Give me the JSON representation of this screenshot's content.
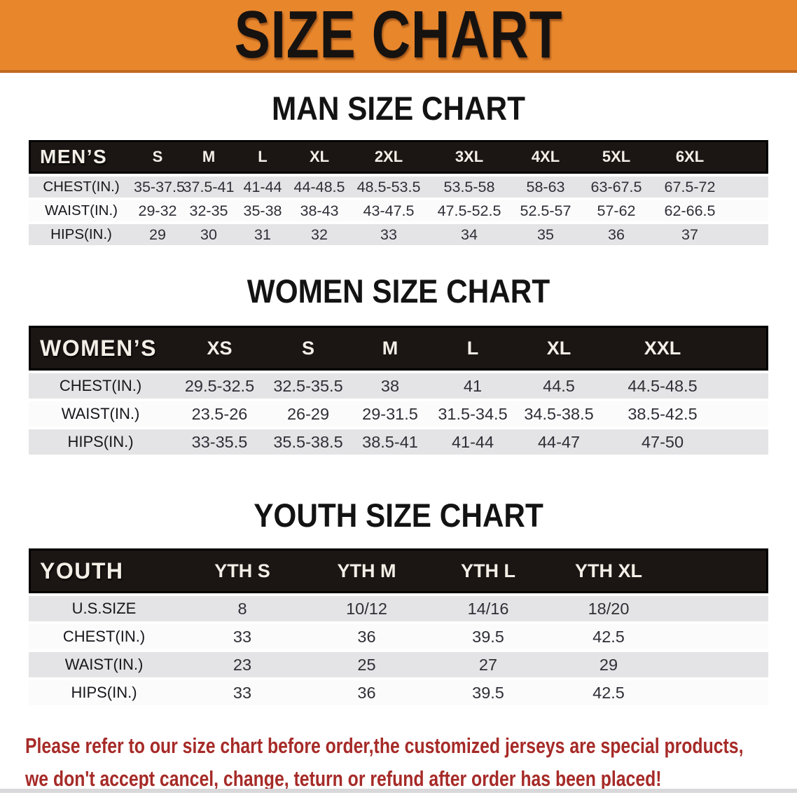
{
  "banner": {
    "title": "SIZE CHART",
    "bg_color": "#E8862C",
    "border_color": "#C06A1E",
    "text_color": "#161210"
  },
  "colors": {
    "header_row_bg": "#1B1614",
    "header_row_text": "#F3EFE7",
    "stripe_gray": "#E4E4E6",
    "stripe_white": "#FBFBFC",
    "footer_red": "#A62B28"
  },
  "sections": [
    {
      "heading": "MAN SIZE CHART",
      "corner": "MEN’S",
      "columns": [
        "S",
        "M",
        "L",
        "XL",
        "2XL",
        "3XL",
        "4XL",
        "5XL",
        "6XL"
      ],
      "rows": [
        {
          "label": "CHEST(IN.)",
          "values": [
            "35-37.5",
            "37.5-41",
            "41-44",
            "44-48.5",
            "48.5-53.5",
            "53.5-58",
            "58-63",
            "63-67.5",
            "67.5-72"
          ]
        },
        {
          "label": "WAIST(IN.)",
          "values": [
            "29-32",
            "32-35",
            "35-38",
            "38-43",
            "43-47.5",
            "47.5-52.5",
            "52.5-57",
            "57-62",
            "62-66.5"
          ]
        },
        {
          "label": "HIPS(IN.)",
          "values": [
            "29",
            "30",
            "31",
            "32",
            "33",
            "34",
            "35",
            "36",
            "37"
          ]
        }
      ]
    },
    {
      "heading": "WOMEN SIZE CHART",
      "corner": "WOMEN’S",
      "columns": [
        "XS",
        "S",
        "M",
        "L",
        "XL",
        "XXL"
      ],
      "rows": [
        {
          "label": "CHEST(IN.)",
          "values": [
            "29.5-32.5",
            "32.5-35.5",
            "38",
            "41",
            "44.5",
            "44.5-48.5"
          ]
        },
        {
          "label": "WAIST(IN.)",
          "values": [
            "23.5-26",
            "26-29",
            "29-31.5",
            "31.5-34.5",
            "34.5-38.5",
            "38.5-42.5"
          ]
        },
        {
          "label": "HIPS(IN.)",
          "values": [
            "33-35.5",
            "35.5-38.5",
            "38.5-41",
            "41-44",
            "44-47",
            "47-50"
          ]
        }
      ]
    },
    {
      "heading": "YOUTH SIZE CHART",
      "corner": "YOUTH",
      "columns": [
        "YTH S",
        "YTH M",
        "YTH L",
        "YTH XL"
      ],
      "rows": [
        {
          "label": "U.S.SIZE",
          "values": [
            "8",
            "10/12",
            "14/16",
            "18/20"
          ]
        },
        {
          "label": "CHEST(IN.)",
          "values": [
            "33",
            "36",
            "39.5",
            "42.5"
          ]
        },
        {
          "label": "WAIST(IN.)",
          "values": [
            "23",
            "25",
            "27",
            "29"
          ]
        },
        {
          "label": "HIPS(IN.)",
          "values": [
            "33",
            "36",
            "39.5",
            "42.5"
          ]
        }
      ]
    }
  ],
  "footer": {
    "line1": "Please refer to our size chart before order,the customized jerseys are special products,",
    "line2": "we don't accept cancel, change, teturn or refund after order has been placed!"
  }
}
